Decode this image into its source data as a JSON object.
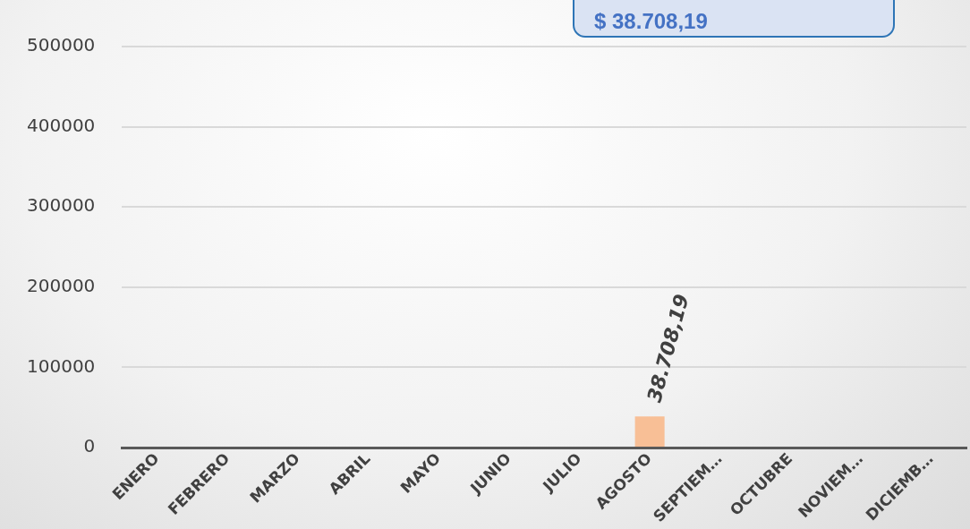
{
  "chart_data": {
    "type": "bar",
    "categories": [
      "ENERO",
      "FEBRERO",
      "MARZO",
      "ABRIL",
      "MAYO",
      "JUNIO",
      "JULIO",
      "AGOSTO",
      "SEPTIEM…",
      "OCTUBRE",
      "NOVIEM…",
      "DICIEMB…"
    ],
    "values": [
      null,
      null,
      null,
      null,
      null,
      null,
      null,
      38708.19,
      null,
      null,
      null,
      null
    ],
    "value_labels": [
      null,
      null,
      null,
      null,
      null,
      null,
      null,
      "38.708,19",
      null,
      null,
      null,
      null
    ],
    "color": "#f8bf96",
    "ylim": [
      0,
      500000
    ],
    "yticks": [
      0,
      100000,
      200000,
      300000,
      400000,
      500000
    ],
    "grid": "y",
    "legend": false,
    "annotations": [
      "$ 38.708,19"
    ]
  }
}
